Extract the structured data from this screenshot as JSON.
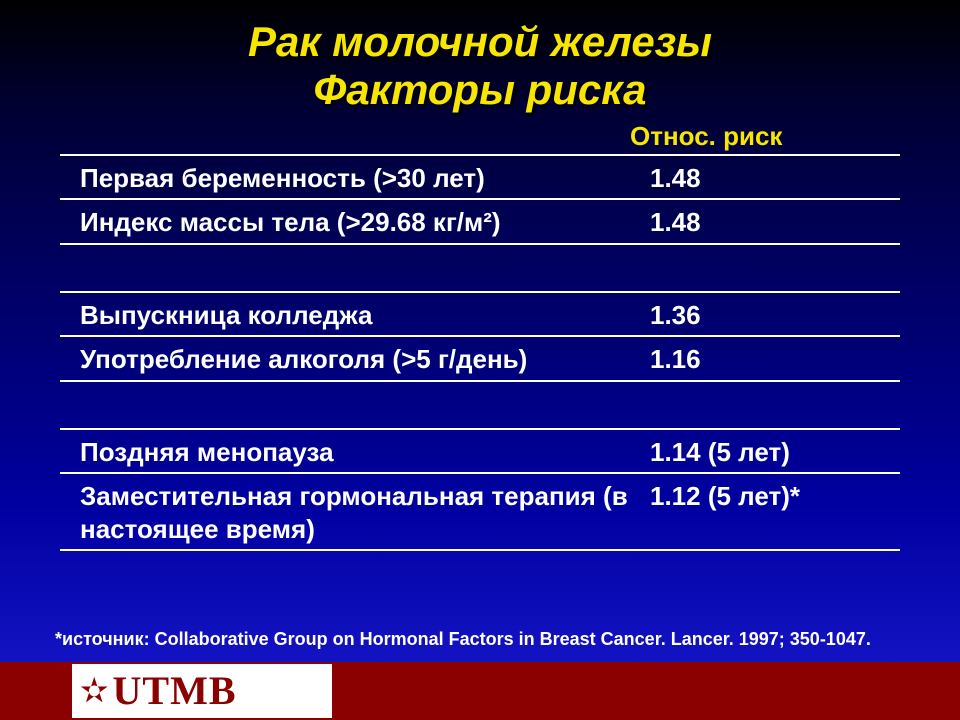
{
  "title": {
    "line1": "Рак молочной железы",
    "line2": "Факторы риска",
    "color": "#f6e600",
    "fontsize": 42
  },
  "table": {
    "header": {
      "factor": "",
      "risk": "Относ. риск",
      "color": "#f6e600"
    },
    "rows": [
      {
        "factor": "Первая беременность (>30 лет)",
        "risk": "1.48"
      },
      {
        "factor": "Индекс массы тела (>29.68 кг/м²)",
        "risk": "1.48"
      },
      {
        "factor": "Выпускница колледжа",
        "risk": "1.36"
      },
      {
        "factor": "Употребление алкоголя  (>5 г/день)",
        "risk": "1.16"
      },
      {
        "factor": "Поздняя менопауза",
        "risk": "1.14 (5 лет)"
      },
      {
        "factor": "Заместительная гормональная терапия (в настоящее время)",
        "risk": "1.12 (5 лет)*"
      }
    ],
    "text_color": "#ffffff",
    "border_color": "#ffffff",
    "fontsize": 26
  },
  "footnote": "*источник: Collaborative Group on Hormonal Factors in Breast Cancer. Lancer. 1997; 350-1047.",
  "logo": {
    "text": "UTMB",
    "star": "✫",
    "color": "#8b0000",
    "bg": "#ffffff"
  },
  "footer_bar_color": "#8b0000",
  "background_gradient": [
    "#000000",
    "#000033",
    "#000066",
    "#0000a0",
    "#1a1ad0"
  ]
}
